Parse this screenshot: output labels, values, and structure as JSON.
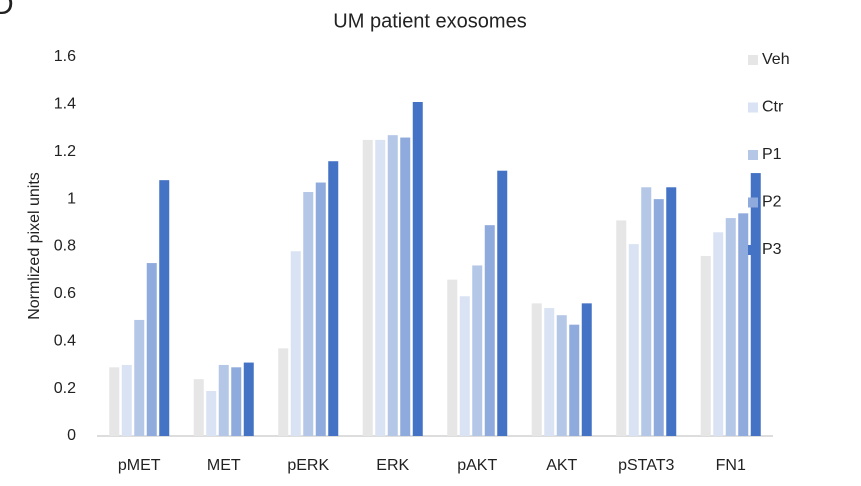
{
  "chart_data": {
    "type": "bar",
    "panel_label": "D",
    "title": "UM patient exosomes",
    "y_label": "Normlized pixel units",
    "categories": [
      "pMET",
      "MET",
      "pERK",
      "ERK",
      "pAKT",
      "AKT",
      "pSTAT3",
      "FN1"
    ],
    "series": [
      {
        "name": "Veh",
        "color": "#e6e6e6",
        "values": [
          0.29,
          0.24,
          0.37,
          1.25,
          0.66,
          0.56,
          0.91,
          0.76
        ]
      },
      {
        "name": "Ctr",
        "color": "#dae3f3",
        "values": [
          0.3,
          0.19,
          0.78,
          1.25,
          0.59,
          0.54,
          0.81,
          0.86
        ]
      },
      {
        "name": "P1",
        "color": "#b4c7e7",
        "values": [
          0.49,
          0.3,
          1.03,
          1.27,
          0.72,
          0.51,
          1.05,
          0.92
        ]
      },
      {
        "name": "P2",
        "color": "#8faadc",
        "values": [
          0.73,
          0.29,
          1.07,
          1.26,
          0.89,
          0.47,
          1.0,
          0.94
        ]
      },
      {
        "name": "P3",
        "color": "#4472c4",
        "values": [
          1.08,
          0.31,
          1.16,
          1.41,
          1.12,
          0.56,
          1.05,
          1.11
        ]
      }
    ],
    "ylim": [
      0,
      1.6
    ],
    "yticks": [
      0,
      {
        "value": 0.2,
        "label": "0.2"
      },
      {
        "value": 0.4,
        "label": "0.4"
      },
      {
        "value": 0.6,
        "label": "0.6"
      },
      {
        "value": 0.8,
        "label": "0.8"
      },
      1,
      {
        "value": 1.2,
        "label": "1.2"
      },
      {
        "value": 1.4,
        "label": "1.4"
      },
      {
        "value": 1.6,
        "label": "1.6"
      }
    ],
    "grid": false,
    "legend": "right"
  }
}
